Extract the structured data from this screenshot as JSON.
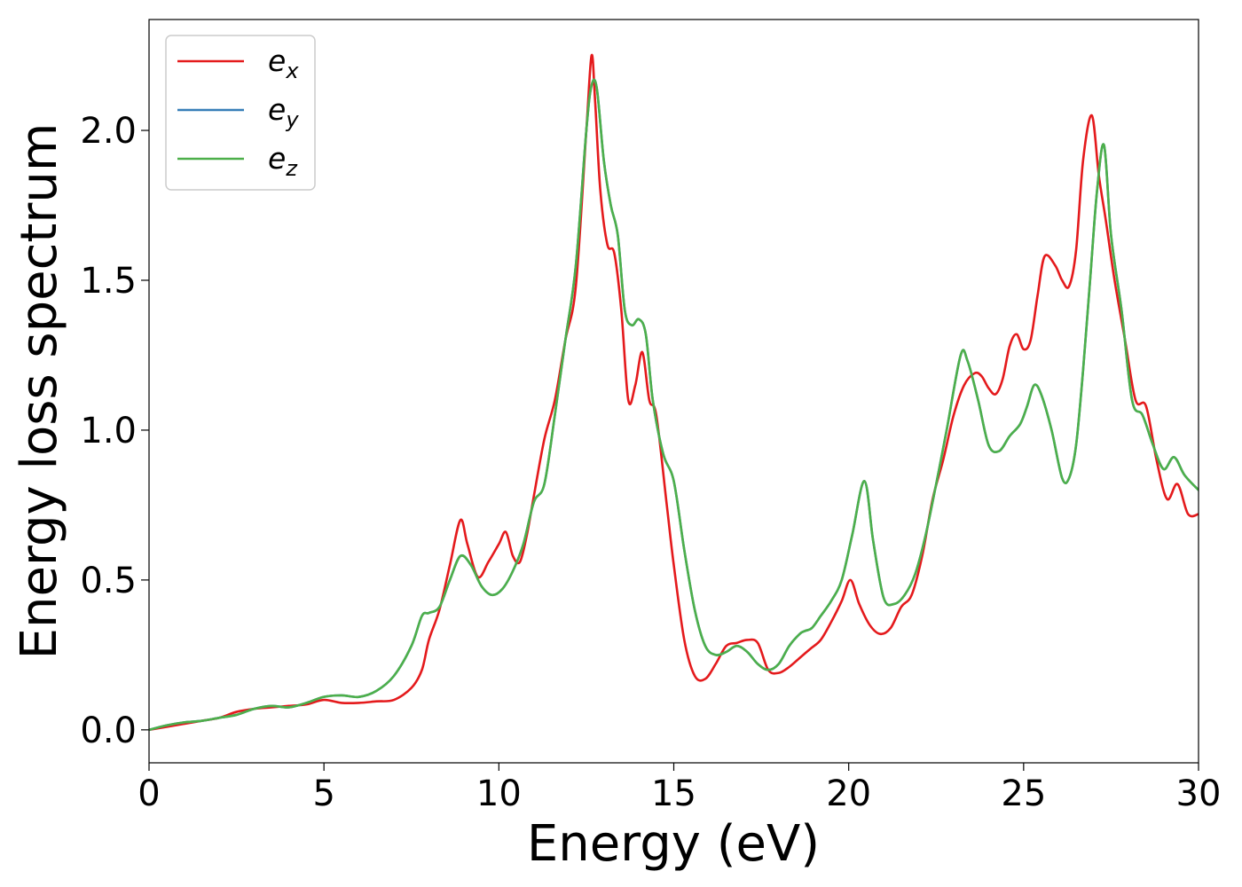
{
  "chart_data": {
    "type": "line",
    "xlabel": "Energy (eV)",
    "ylabel": "Energy loss spectrum",
    "xlim": [
      0,
      30
    ],
    "ylim": [
      -0.11,
      2.37
    ],
    "xticks": [
      "0",
      "5",
      "10",
      "15",
      "20",
      "25",
      "30"
    ],
    "yticks": [
      "0.0",
      "0.5",
      "1.0",
      "1.5",
      "2.0"
    ],
    "grid": false,
    "legend_position": "top-left",
    "legend": [
      {
        "base": "e",
        "sub": "x",
        "color": "#e41a1c"
      },
      {
        "base": "e",
        "sub": "y",
        "color": "#377eb8"
      },
      {
        "base": "e",
        "sub": "z",
        "color": "#4daf4a"
      }
    ],
    "series": [
      {
        "name": "e_x",
        "color": "#e41a1c",
        "x": [
          0,
          0.5,
          1,
          1.5,
          2,
          2.5,
          3,
          3.5,
          4,
          4.5,
          5,
          5.5,
          6,
          6.5,
          7,
          7.5,
          7.8,
          8,
          8.3,
          8.6,
          8.9,
          9.1,
          9.4,
          9.7,
          10,
          10.2,
          10.4,
          10.6,
          10.8,
          11,
          11.3,
          11.6,
          11.9,
          12.2,
          12.5,
          12.65,
          12.75,
          12.9,
          13.1,
          13.3,
          13.5,
          13.7,
          13.9,
          14.1,
          14.3,
          14.5,
          14.8,
          15,
          15.3,
          15.6,
          15.9,
          16.2,
          16.5,
          16.8,
          17.1,
          17.4,
          17.7,
          18,
          18.3,
          18.6,
          18.9,
          19.2,
          19.5,
          19.8,
          20.05,
          20.3,
          20.6,
          20.9,
          21.2,
          21.5,
          21.8,
          22.1,
          22.4,
          22.7,
          23,
          23.3,
          23.6,
          23.8,
          24,
          24.2,
          24.4,
          24.6,
          24.8,
          25,
          25.2,
          25.4,
          25.6,
          25.9,
          26.1,
          26.3,
          26.5,
          26.7,
          26.95,
          27.15,
          27.35,
          27.6,
          27.9,
          28.2,
          28.5,
          28.8,
          29.1,
          29.4,
          29.7,
          30
        ],
        "y": [
          0,
          0.01,
          0.02,
          0.03,
          0.04,
          0.06,
          0.07,
          0.075,
          0.08,
          0.085,
          0.1,
          0.09,
          0.09,
          0.095,
          0.1,
          0.14,
          0.2,
          0.3,
          0.4,
          0.55,
          0.7,
          0.62,
          0.51,
          0.56,
          0.62,
          0.66,
          0.58,
          0.56,
          0.65,
          0.78,
          0.97,
          1.1,
          1.3,
          1.48,
          2.0,
          2.25,
          2.1,
          1.8,
          1.62,
          1.59,
          1.4,
          1.1,
          1.15,
          1.26,
          1.1,
          1.05,
          0.75,
          0.55,
          0.3,
          0.18,
          0.17,
          0.22,
          0.28,
          0.29,
          0.3,
          0.29,
          0.2,
          0.19,
          0.21,
          0.24,
          0.27,
          0.3,
          0.36,
          0.43,
          0.5,
          0.42,
          0.35,
          0.32,
          0.34,
          0.41,
          0.45,
          0.58,
          0.77,
          0.9,
          1.05,
          1.15,
          1.19,
          1.18,
          1.14,
          1.12,
          1.17,
          1.28,
          1.32,
          1.27,
          1.3,
          1.45,
          1.58,
          1.55,
          1.5,
          1.48,
          1.6,
          1.9,
          2.05,
          1.85,
          1.7,
          1.5,
          1.3,
          1.1,
          1.08,
          0.9,
          0.77,
          0.82,
          0.72,
          0.72
        ]
      },
      {
        "name": "e_y",
        "color": "#377eb8",
        "x": [
          0,
          0.5,
          1,
          1.5,
          2,
          2.5,
          3,
          3.5,
          4,
          4.5,
          5,
          5.5,
          6,
          6.5,
          7,
          7.5,
          7.8,
          8,
          8.3,
          8.6,
          8.9,
          9.2,
          9.5,
          9.8,
          10.1,
          10.4,
          10.7,
          11,
          11.3,
          11.6,
          11.9,
          12.2,
          12.5,
          12.65,
          12.8,
          13,
          13.2,
          13.4,
          13.6,
          13.8,
          14,
          14.2,
          14.4,
          14.7,
          15,
          15.3,
          15.6,
          15.9,
          16.2,
          16.5,
          16.8,
          17.1,
          17.4,
          17.7,
          18,
          18.3,
          18.6,
          18.75,
          18.95,
          19.2,
          19.5,
          19.8,
          20.1,
          20.45,
          20.7,
          21,
          21.3,
          21.6,
          21.9,
          22.2,
          22.5,
          22.8,
          23.2,
          23.4,
          23.7,
          24,
          24.3,
          24.6,
          24.9,
          25.1,
          25.3,
          25.5,
          25.8,
          26.1,
          26.3,
          26.5,
          26.7,
          26.9,
          27.1,
          27.3,
          27.5,
          27.8,
          28.1,
          28.4,
          28.7,
          29,
          29.3,
          29.6,
          30
        ],
        "y": [
          0,
          0.015,
          0.025,
          0.03,
          0.04,
          0.05,
          0.07,
          0.08,
          0.075,
          0.09,
          0.11,
          0.115,
          0.11,
          0.13,
          0.18,
          0.28,
          0.38,
          0.39,
          0.41,
          0.5,
          0.58,
          0.55,
          0.48,
          0.45,
          0.47,
          0.53,
          0.62,
          0.76,
          0.82,
          1.05,
          1.3,
          1.55,
          2.0,
          2.15,
          2.14,
          1.9,
          1.75,
          1.65,
          1.4,
          1.35,
          1.37,
          1.32,
          1.1,
          0.92,
          0.83,
          0.6,
          0.4,
          0.28,
          0.25,
          0.26,
          0.28,
          0.26,
          0.22,
          0.2,
          0.22,
          0.28,
          0.32,
          0.33,
          0.34,
          0.38,
          0.43,
          0.5,
          0.65,
          0.83,
          0.63,
          0.44,
          0.42,
          0.45,
          0.52,
          0.65,
          0.82,
          1.0,
          1.25,
          1.23,
          1.1,
          0.95,
          0.93,
          0.98,
          1.02,
          1.08,
          1.15,
          1.12,
          1.0,
          0.84,
          0.84,
          0.95,
          1.2,
          1.5,
          1.8,
          1.95,
          1.65,
          1.4,
          1.1,
          1.05,
          0.95,
          0.87,
          0.91,
          0.85,
          0.8
        ]
      },
      {
        "name": "e_z",
        "color": "#4daf4a",
        "x": [
          0,
          0.5,
          1,
          1.5,
          2,
          2.5,
          3,
          3.5,
          4,
          4.5,
          5,
          5.5,
          6,
          6.5,
          7,
          7.5,
          7.8,
          8,
          8.3,
          8.6,
          8.9,
          9.2,
          9.5,
          9.8,
          10.1,
          10.4,
          10.7,
          11,
          11.3,
          11.6,
          11.9,
          12.2,
          12.5,
          12.65,
          12.8,
          13,
          13.2,
          13.4,
          13.6,
          13.8,
          14,
          14.2,
          14.4,
          14.7,
          15,
          15.3,
          15.6,
          15.9,
          16.2,
          16.5,
          16.8,
          17.1,
          17.4,
          17.7,
          18,
          18.3,
          18.6,
          18.75,
          18.95,
          19.2,
          19.5,
          19.8,
          20.1,
          20.45,
          20.7,
          21,
          21.3,
          21.6,
          21.9,
          22.2,
          22.5,
          22.8,
          23.2,
          23.4,
          23.7,
          24,
          24.3,
          24.6,
          24.9,
          25.1,
          25.3,
          25.5,
          25.8,
          26.1,
          26.3,
          26.5,
          26.7,
          26.9,
          27.1,
          27.3,
          27.5,
          27.8,
          28.1,
          28.4,
          28.7,
          29,
          29.3,
          29.6,
          30
        ],
        "y": [
          0,
          0.015,
          0.025,
          0.03,
          0.04,
          0.05,
          0.07,
          0.08,
          0.075,
          0.09,
          0.11,
          0.115,
          0.11,
          0.13,
          0.18,
          0.28,
          0.38,
          0.39,
          0.41,
          0.5,
          0.58,
          0.55,
          0.48,
          0.45,
          0.47,
          0.53,
          0.62,
          0.76,
          0.82,
          1.05,
          1.3,
          1.55,
          2.0,
          2.15,
          2.14,
          1.9,
          1.75,
          1.65,
          1.4,
          1.35,
          1.37,
          1.32,
          1.1,
          0.92,
          0.83,
          0.6,
          0.4,
          0.28,
          0.25,
          0.26,
          0.28,
          0.26,
          0.22,
          0.2,
          0.22,
          0.28,
          0.32,
          0.33,
          0.34,
          0.38,
          0.43,
          0.5,
          0.65,
          0.83,
          0.63,
          0.44,
          0.42,
          0.45,
          0.52,
          0.65,
          0.82,
          1.0,
          1.25,
          1.23,
          1.1,
          0.95,
          0.93,
          0.98,
          1.02,
          1.08,
          1.15,
          1.12,
          1.0,
          0.84,
          0.84,
          0.95,
          1.2,
          1.5,
          1.8,
          1.95,
          1.65,
          1.4,
          1.1,
          1.05,
          0.95,
          0.87,
          0.91,
          0.85,
          0.8
        ]
      }
    ]
  }
}
